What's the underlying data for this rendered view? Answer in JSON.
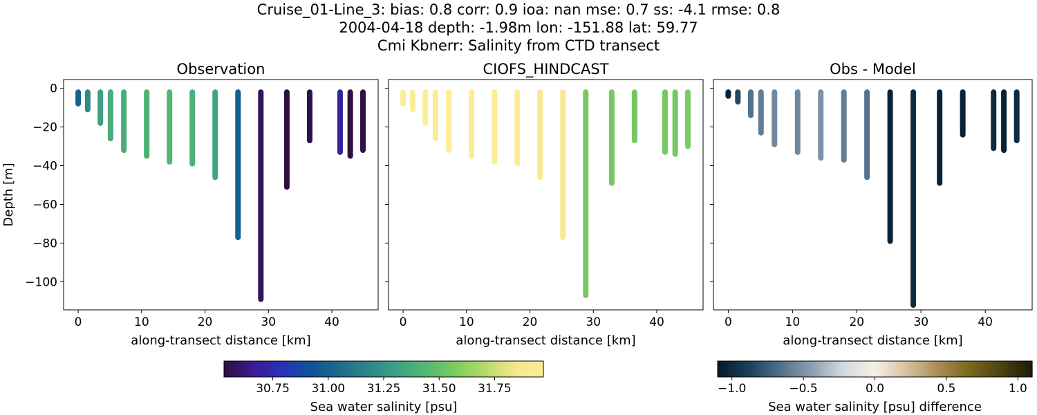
{
  "figure": {
    "title_lines": [
      "Cruise_01-Line_3: bias: 0.8  corr: 0.9  ioa: nan  mse: 0.7  ss: -4.1  rmse: 0.8",
      "2004-04-18 depth: -1.98m lon: -151.88 lat: 59.77",
      "Cmi Kbnerr: Salinity from CTD transect"
    ]
  },
  "colors": {
    "observation_colormap": [
      "#2f0f3e",
      "#3b1b92",
      "#2a31b8",
      "#0f5496",
      "#1d6c8d",
      "#2f8787",
      "#3fa381",
      "#55b972",
      "#7fcd5e",
      "#b6da6b",
      "#f1e78b",
      "#fdee9a"
    ],
    "difference_colormap": [
      "#04192c",
      "#1a4159",
      "#52708a",
      "#8d9fae",
      "#d4d9de",
      "#f4efe7",
      "#d6c2a3",
      "#a98d56",
      "#7b681e",
      "#4a4314",
      "#1a1d0b"
    ]
  },
  "chart_data": [
    {
      "type": "scatter",
      "title": "Observation",
      "xlabel": "along-transect distance [km]",
      "ylabel": "Depth [m]",
      "xlim": [
        -2.3,
        47.3
      ],
      "ylim": [
        -114.5,
        4.5
      ],
      "xticks": [
        0,
        10,
        20,
        30,
        40
      ],
      "yticks": [
        0,
        -20,
        -40,
        -60,
        -80,
        -100
      ],
      "profiles": [
        {
          "x": 0.0,
          "bottom": -8,
          "value": 31.0
        },
        {
          "x": 1.5,
          "bottom": -11,
          "value": 31.2
        },
        {
          "x": 3.5,
          "bottom": -18,
          "value": 31.3
        },
        {
          "x": 5.1,
          "bottom": -26,
          "value": 31.37
        },
        {
          "x": 7.2,
          "bottom": -32,
          "value": 31.37
        },
        {
          "x": 10.8,
          "bottom": -35,
          "value": 31.4
        },
        {
          "x": 14.4,
          "bottom": -38,
          "value": 31.42
        },
        {
          "x": 18.0,
          "bottom": -39,
          "value": 31.4
        },
        {
          "x": 21.6,
          "bottom": -46,
          "value": 31.32
        },
        {
          "x": 25.2,
          "bottom": -77,
          "value": 30.98
        },
        {
          "x": 28.8,
          "bottom": -109,
          "value": 30.58
        },
        {
          "x": 32.9,
          "bottom": -51,
          "value": 30.5
        },
        {
          "x": 36.5,
          "bottom": -27,
          "value": 30.55
        },
        {
          "x": 41.3,
          "bottom": -33,
          "value": 30.7
        },
        {
          "x": 42.9,
          "bottom": -35,
          "value": 30.52
        },
        {
          "x": 44.9,
          "bottom": -32,
          "value": 30.55
        }
      ]
    },
    {
      "type": "scatter",
      "title": "CIOFS_HINDCAST",
      "xlabel": "along-transect distance [km]",
      "xlim": [
        -2.3,
        47.3
      ],
      "ylim": [
        -114.5,
        4.5
      ],
      "xticks": [
        0,
        10,
        20,
        30,
        40
      ],
      "yticks": [
        0,
        -20,
        -40,
        -60,
        -80,
        -100
      ],
      "profiles": [
        {
          "x": 0.0,
          "bottom": -8,
          "value": 31.95
        },
        {
          "x": 1.5,
          "bottom": -11,
          "value": 31.95
        },
        {
          "x": 3.5,
          "bottom": -18,
          "value": 31.95
        },
        {
          "x": 5.1,
          "bottom": -26,
          "value": 31.95
        },
        {
          "x": 7.2,
          "bottom": -32,
          "value": 31.95
        },
        {
          "x": 10.8,
          "bottom": -35,
          "value": 31.95
        },
        {
          "x": 14.4,
          "bottom": -38,
          "value": 31.95
        },
        {
          "x": 18.0,
          "bottom": -39,
          "value": 31.95
        },
        {
          "x": 21.6,
          "bottom": -46,
          "value": 31.92
        },
        {
          "x": 25.2,
          "bottom": -77,
          "value": 31.9
        },
        {
          "x": 28.8,
          "bottom": -107,
          "value": 31.55
        },
        {
          "x": 32.9,
          "bottom": -49,
          "value": 31.55
        },
        {
          "x": 36.5,
          "bottom": -27,
          "value": 31.55
        },
        {
          "x": 41.3,
          "bottom": -33,
          "value": 31.55
        },
        {
          "x": 42.9,
          "bottom": -34,
          "value": 31.55
        },
        {
          "x": 44.9,
          "bottom": -30,
          "value": 31.57
        }
      ]
    },
    {
      "type": "scatter",
      "title": "Obs - Model",
      "xlabel": "along-transect distance [km]",
      "xlim": [
        -2.3,
        47.3
      ],
      "ylim": [
        -114.5,
        4.5
      ],
      "xticks": [
        0,
        10,
        20,
        30,
        40
      ],
      "yticks": [
        0,
        -20,
        -40,
        -60,
        -80,
        -100
      ],
      "profiles": [
        {
          "x": 0.0,
          "bottom": -4,
          "value": -1.05
        },
        {
          "x": 1.5,
          "bottom": -7,
          "value": -0.85
        },
        {
          "x": 3.5,
          "bottom": -14,
          "value": -0.65
        },
        {
          "x": 5.1,
          "bottom": -23,
          "value": -0.6
        },
        {
          "x": 7.2,
          "bottom": -29,
          "value": -0.55
        },
        {
          "x": 10.8,
          "bottom": -33,
          "value": -0.55
        },
        {
          "x": 14.4,
          "bottom": -36,
          "value": -0.5
        },
        {
          "x": 18.0,
          "bottom": -37,
          "value": -0.6
        },
        {
          "x": 21.6,
          "bottom": -46,
          "value": -0.65
        },
        {
          "x": 25.2,
          "bottom": -79,
          "value": -1.05
        },
        {
          "x": 28.8,
          "bottom": -112,
          "value": -1.0
        },
        {
          "x": 32.9,
          "bottom": -49,
          "value": -1.05
        },
        {
          "x": 36.5,
          "bottom": -24,
          "value": -1.05
        },
        {
          "x": 41.3,
          "bottom": -31,
          "value": -1.0
        },
        {
          "x": 42.9,
          "bottom": -32,
          "value": -1.05
        },
        {
          "x": 44.9,
          "bottom": -27,
          "value": -1.0
        }
      ]
    }
  ],
  "colorbars": [
    {
      "label": "Sea water salinity [psu]",
      "vmin": 30.53,
      "vmax": 31.97,
      "ticks": [
        30.75,
        31.0,
        31.25,
        31.5,
        31.75
      ],
      "tick_labels": [
        "30.75",
        "31.00",
        "31.25",
        "31.50",
        "31.75"
      ]
    },
    {
      "label": "Sea water salinity [psu] difference",
      "vmin": -1.1,
      "vmax": 1.1,
      "ticks": [
        -1.0,
        -0.5,
        0.0,
        0.5,
        1.0
      ],
      "tick_labels": [
        "−1.0",
        "−0.5",
        "0.0",
        "0.5",
        "1.0"
      ]
    }
  ]
}
